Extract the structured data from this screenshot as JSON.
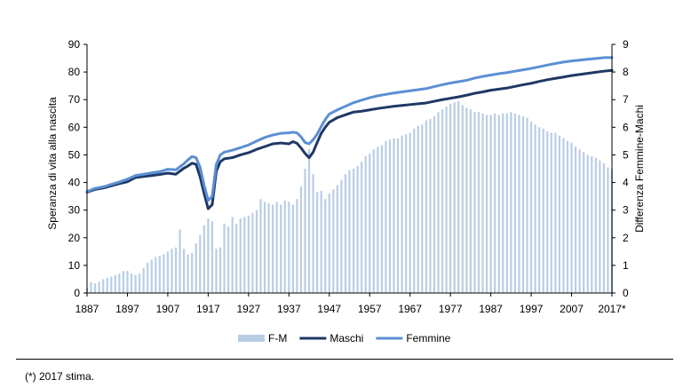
{
  "chart_data": {
    "type": "line",
    "x_tick_labels": [
      "1887",
      "1897",
      "1907",
      "1917",
      "1927",
      "1937",
      "1947",
      "1957",
      "1967",
      "1977",
      "1987",
      "1997",
      "2007",
      "2017*"
    ],
    "ylabel_left": "Speranza di vita alla nascita",
    "ylabel_right": "Differenza Femmine-Machi",
    "ylim_left": [
      0,
      90
    ],
    "ylim_right": [
      0,
      9
    ],
    "y_ticks_left": [
      "0",
      "10",
      "20",
      "30",
      "40",
      "50",
      "60",
      "70",
      "80",
      "90"
    ],
    "y_ticks_right": [
      "0",
      "1",
      "2",
      "3",
      "4",
      "5",
      "6",
      "7",
      "8",
      "9"
    ],
    "legend_position": "bottom",
    "grid": false,
    "x_range": [
      1887,
      2017
    ],
    "series": [
      {
        "name": "F-M",
        "type": "bar",
        "axis": "right",
        "color": "#b9cde5",
        "x": [
          1887,
          1888,
          1889,
          1890,
          1891,
          1892,
          1893,
          1894,
          1895,
          1896,
          1897,
          1898,
          1899,
          1900,
          1901,
          1902,
          1903,
          1904,
          1905,
          1906,
          1907,
          1908,
          1909,
          1910,
          1911,
          1912,
          1913,
          1914,
          1915,
          1916,
          1917,
          1918,
          1919,
          1920,
          1921,
          1922,
          1923,
          1924,
          1925,
          1926,
          1927,
          1928,
          1929,
          1930,
          1931,
          1932,
          1933,
          1934,
          1935,
          1936,
          1937,
          1938,
          1939,
          1940,
          1941,
          1942,
          1943,
          1944,
          1945,
          1946,
          1947,
          1948,
          1949,
          1950,
          1951,
          1952,
          1953,
          1954,
          1955,
          1956,
          1957,
          1958,
          1959,
          1960,
          1961,
          1962,
          1963,
          1964,
          1965,
          1966,
          1967,
          1968,
          1969,
          1970,
          1971,
          1972,
          1973,
          1974,
          1975,
          1976,
          1977,
          1978,
          1979,
          1980,
          1981,
          1982,
          1983,
          1984,
          1985,
          1986,
          1987,
          1988,
          1989,
          1990,
          1991,
          1992,
          1993,
          1994,
          1995,
          1996,
          1997,
          1998,
          1999,
          2000,
          2001,
          2002,
          2003,
          2004,
          2005,
          2006,
          2007,
          2008,
          2009,
          2010,
          2011,
          2012,
          2013,
          2014,
          2015,
          2016,
          2017
        ],
        "values": [
          0.2,
          0.4,
          0.35,
          0.4,
          0.5,
          0.55,
          0.6,
          0.65,
          0.7,
          0.8,
          0.8,
          0.7,
          0.65,
          0.7,
          0.9,
          1.1,
          1.2,
          1.3,
          1.35,
          1.4,
          1.5,
          1.6,
          1.65,
          2.3,
          1.6,
          1.4,
          1.45,
          1.8,
          2.1,
          2.45,
          2.7,
          2.6,
          1.6,
          1.65,
          2.5,
          2.4,
          2.75,
          2.5,
          2.7,
          2.75,
          2.8,
          2.9,
          3.0,
          3.4,
          3.3,
          3.25,
          3.2,
          3.3,
          3.2,
          3.35,
          3.3,
          3.2,
          3.4,
          3.85,
          4.5,
          5.2,
          4.3,
          3.65,
          3.7,
          3.4,
          3.6,
          3.75,
          3.9,
          4.1,
          4.3,
          4.45,
          4.5,
          4.6,
          4.75,
          4.95,
          5.05,
          5.2,
          5.3,
          5.35,
          5.5,
          5.55,
          5.6,
          5.6,
          5.7,
          5.75,
          5.8,
          5.95,
          6.05,
          6.1,
          6.25,
          6.3,
          6.4,
          6.55,
          6.65,
          6.75,
          6.85,
          6.9,
          6.95,
          6.8,
          6.7,
          6.65,
          6.55,
          6.55,
          6.5,
          6.45,
          6.45,
          6.5,
          6.45,
          6.5,
          6.5,
          6.55,
          6.5,
          6.45,
          6.4,
          6.35,
          6.2,
          6.1,
          6.0,
          5.95,
          5.85,
          5.8,
          5.8,
          5.7,
          5.6,
          5.5,
          5.45,
          5.3,
          5.2,
          5.1,
          5.0,
          4.95,
          4.9,
          4.8,
          4.7,
          4.55,
          4.5
        ]
      },
      {
        "name": "Maschi",
        "type": "line",
        "axis": "left",
        "color": "#1f3864",
        "x": [
          1887,
          1889,
          1891,
          1893,
          1895,
          1897,
          1899,
          1901,
          1903,
          1905,
          1907,
          1909,
          1911,
          1912,
          1913,
          1914,
          1915,
          1916,
          1917,
          1918,
          1919,
          1920,
          1921,
          1923,
          1925,
          1927,
          1929,
          1931,
          1933,
          1935,
          1937,
          1938,
          1939,
          1940,
          1941,
          1942,
          1943,
          1944,
          1945,
          1946,
          1947,
          1949,
          1951,
          1953,
          1955,
          1957,
          1959,
          1961,
          1963,
          1965,
          1967,
          1969,
          1971,
          1973,
          1975,
          1977,
          1979,
          1981,
          1983,
          1985,
          1987,
          1989,
          1991,
          1993,
          1995,
          1997,
          1999,
          2001,
          2003,
          2005,
          2007,
          2009,
          2011,
          2013,
          2015,
          2017
        ],
        "values": [
          36.5,
          37.5,
          38.0,
          38.8,
          39.6,
          40.3,
          41.8,
          42.2,
          42.5,
          42.9,
          43.4,
          43.0,
          45.2,
          46.0,
          47.0,
          46.6,
          42.0,
          36.0,
          30.5,
          32.0,
          44.0,
          47.5,
          48.6,
          49.0,
          50.0,
          50.8,
          52.0,
          53.0,
          54.0,
          54.3,
          54.0,
          54.8,
          54.2,
          52.5,
          50.5,
          49.0,
          51.0,
          54.5,
          57.8,
          60.0,
          61.8,
          63.5,
          64.5,
          65.5,
          65.8,
          66.3,
          66.8,
          67.2,
          67.6,
          67.9,
          68.2,
          68.5,
          68.8,
          69.4,
          70.0,
          70.5,
          71.0,
          71.6,
          72.3,
          72.8,
          73.4,
          73.8,
          74.2,
          74.8,
          75.4,
          75.9,
          76.6,
          77.2,
          77.7,
          78.2,
          78.7,
          79.1,
          79.5,
          79.9,
          80.3,
          80.6
        ]
      },
      {
        "name": "Femmine",
        "type": "line",
        "axis": "left",
        "color": "#5b8fd4",
        "x": [
          1887,
          1889,
          1891,
          1893,
          1895,
          1897,
          1899,
          1901,
          1903,
          1905,
          1907,
          1909,
          1911,
          1912,
          1913,
          1914,
          1915,
          1916,
          1917,
          1918,
          1919,
          1920,
          1921,
          1923,
          1925,
          1927,
          1929,
          1931,
          1933,
          1935,
          1937,
          1938,
          1939,
          1940,
          1941,
          1942,
          1943,
          1944,
          1945,
          1946,
          1947,
          1949,
          1951,
          1953,
          1955,
          1957,
          1959,
          1961,
          1963,
          1965,
          1967,
          1969,
          1971,
          1973,
          1975,
          1977,
          1979,
          1981,
          1983,
          1985,
          1987,
          1989,
          1991,
          1993,
          1995,
          1997,
          1999,
          2001,
          2003,
          2005,
          2007,
          2009,
          2011,
          2013,
          2015,
          2017
        ],
        "values": [
          36.7,
          37.9,
          38.4,
          39.3,
          40.2,
          41.2,
          42.5,
          43.0,
          43.5,
          43.9,
          44.8,
          44.6,
          46.8,
          48.2,
          49.4,
          49.0,
          45.5,
          39.0,
          33.5,
          35.0,
          46.5,
          50.0,
          51.0,
          51.7,
          52.6,
          53.6,
          55.0,
          56.3,
          57.2,
          57.8,
          58.0,
          58.2,
          58.0,
          56.5,
          54.5,
          54.0,
          55.5,
          57.5,
          60.3,
          62.8,
          64.8,
          66.3,
          67.6,
          68.9,
          69.8,
          70.7,
          71.4,
          71.9,
          72.4,
          72.8,
          73.2,
          73.6,
          74.0,
          74.7,
          75.4,
          76.0,
          76.5,
          77.0,
          77.8,
          78.4,
          78.9,
          79.4,
          79.8,
          80.3,
          80.8,
          81.3,
          81.9,
          82.5,
          83.1,
          83.6,
          84.0,
          84.3,
          84.6,
          84.9,
          85.2,
          85.2
        ]
      }
    ]
  },
  "footnote": "(*) 2017 stima."
}
